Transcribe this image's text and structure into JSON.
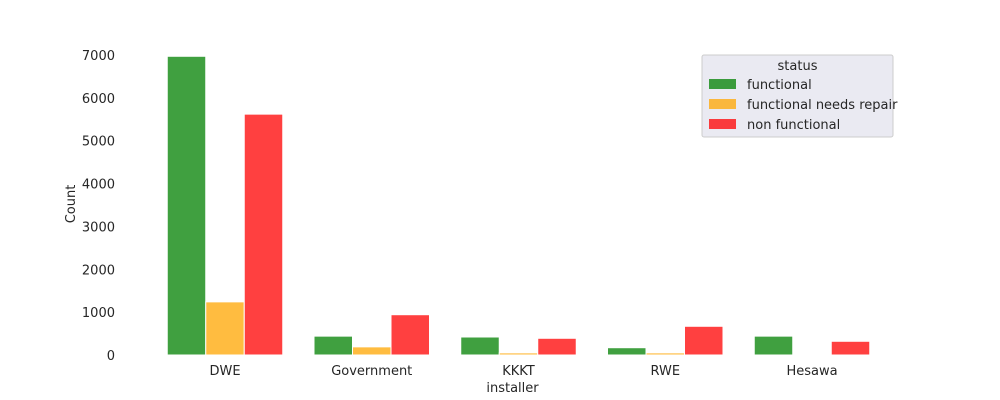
{
  "chart_data": {
    "type": "bar",
    "title": "",
    "xlabel": "installer",
    "ylabel": "Count",
    "categories": [
      "DWE",
      "Government",
      "KKKT",
      "RWE",
      "Hesawa"
    ],
    "yticks": [
      "0",
      "1000",
      "2000",
      "3000",
      "4000",
      "5000",
      "6000",
      "7000"
    ],
    "ylim": [
      0,
      7350
    ],
    "grid": false,
    "legend": {
      "title": "status",
      "placement": "top-right"
    },
    "series": [
      {
        "name": "functional",
        "color": "#008000",
        "values": [
          6970,
          440,
          420,
          170,
          440
        ]
      },
      {
        "name": "functional needs repair",
        "color": "#ffa500",
        "values": [
          1240,
          190,
          50,
          50,
          0
        ]
      },
      {
        "name": "non functional",
        "color": "#ff0000",
        "values": [
          5620,
          940,
          390,
          670,
          320
        ]
      }
    ]
  }
}
